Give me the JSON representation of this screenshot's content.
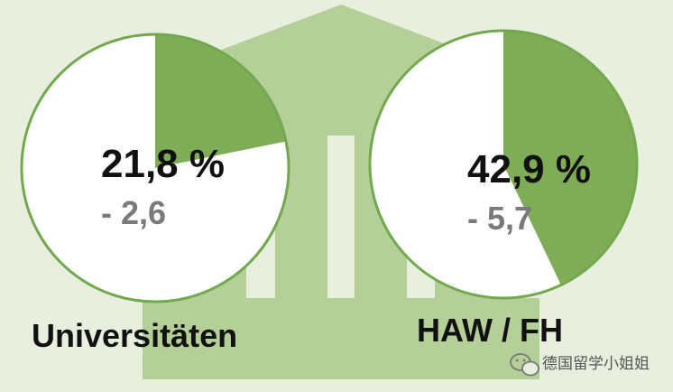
{
  "chart_data": {
    "type": "pie",
    "title": "",
    "charts": [
      {
        "category": "Universitäten",
        "percent": 21.8,
        "value_label": "21,8 %",
        "change": -2.6,
        "change_label": "- 2,6"
      },
      {
        "category": "HAW / FH",
        "percent": 42.9,
        "value_label": "42,9 %",
        "change": -5.7,
        "change_label": "- 5,7"
      }
    ],
    "colors": {
      "slice": "#7fad57",
      "ring": "#72a84e",
      "fill": "#ffffff",
      "building": "#b5cf99",
      "background": "#e8efdf"
    }
  },
  "watermark": {
    "icon": "wechat-icon",
    "text": "德国留学小姐姐"
  }
}
